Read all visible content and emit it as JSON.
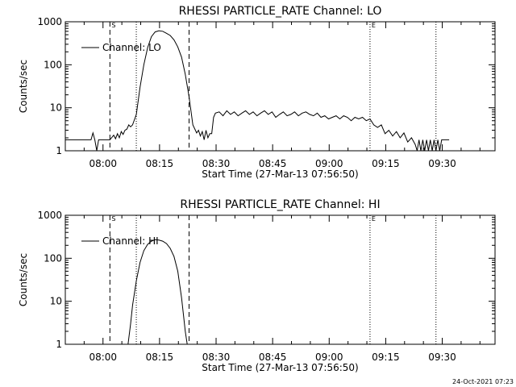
{
  "footer_timestamp": "24-Oct-2021 07:23",
  "chart_data": [
    {
      "type": "line",
      "title": "RHESSI PARTICLE_RATE Channel: LO",
      "xlabel": "Start Time (27-Mar-13 07:56:50)",
      "ylabel": "Counts/sec",
      "yscale": "log",
      "xlim": [
        -6.833,
        107.167
      ],
      "ylim": [
        1,
        1000
      ],
      "xticks": [
        {
          "v": 3.167,
          "label": "08:00"
        },
        {
          "v": 18.167,
          "label": "08:15"
        },
        {
          "v": 33.167,
          "label": "08:30"
        },
        {
          "v": 48.167,
          "label": "08:45"
        },
        {
          "v": 63.167,
          "label": "09:00"
        },
        {
          "v": 78.167,
          "label": "09:15"
        },
        {
          "v": 93.167,
          "label": "09:30"
        }
      ],
      "yticks": [
        {
          "v": 1,
          "label": "1"
        },
        {
          "v": 10,
          "label": "10"
        },
        {
          "v": 100,
          "label": "100"
        },
        {
          "v": 1000,
          "label": "1000"
        }
      ],
      "legend": {
        "label": "Channel: LO",
        "position": "top-left"
      },
      "markers": [
        {
          "label": "S",
          "x": 5.0,
          "style": "dashed"
        },
        {
          "label": "",
          "x": 26.0,
          "style": "dashed"
        },
        {
          "label": "",
          "x": 12.0,
          "style": "dotted"
        },
        {
          "label": "E",
          "x": 74.0,
          "style": "dotted"
        },
        {
          "label": "",
          "x": 91.5,
          "style": "dotted"
        }
      ],
      "series": [
        {
          "values": [
            [
              -6.8,
              1.8
            ],
            [
              0,
              1.8
            ],
            [
              0.5,
              2.6
            ],
            [
              1,
              1.8
            ],
            [
              1.5,
              1
            ],
            [
              2,
              1.8
            ],
            [
              5,
              1.8
            ],
            [
              6,
              2.3
            ],
            [
              6.5,
              1.9
            ],
            [
              7,
              2.5
            ],
            [
              7.5,
              2
            ],
            [
              8,
              2.8
            ],
            [
              8.5,
              2.4
            ],
            [
              9,
              3
            ],
            [
              9.5,
              3.2
            ],
            [
              10,
              4
            ],
            [
              10.5,
              3.6
            ],
            [
              11,
              4
            ],
            [
              12,
              7
            ],
            [
              13,
              30
            ],
            [
              14,
              100
            ],
            [
              15,
              250
            ],
            [
              16,
              450
            ],
            [
              17,
              580
            ],
            [
              18,
              620
            ],
            [
              19,
              600
            ],
            [
              20,
              540
            ],
            [
              21,
              480
            ],
            [
              22,
              380
            ],
            [
              23,
              260
            ],
            [
              24,
              150
            ],
            [
              25,
              60
            ],
            [
              26,
              18
            ],
            [
              27,
              4
            ],
            [
              28,
              2.6
            ],
            [
              28.5,
              3
            ],
            [
              29,
              2.2
            ],
            [
              29.5,
              2.8
            ],
            [
              30,
              1.8
            ],
            [
              30.5,
              3
            ],
            [
              31,
              2
            ],
            [
              31.5,
              2.5
            ],
            [
              32,
              2.5
            ],
            [
              32.5,
              6
            ],
            [
              33,
              7.5
            ],
            [
              34,
              8
            ],
            [
              35,
              6.5
            ],
            [
              36,
              8.5
            ],
            [
              37,
              7
            ],
            [
              38,
              8
            ],
            [
              39,
              6.5
            ],
            [
              40,
              7.5
            ],
            [
              41,
              8.5
            ],
            [
              42,
              7
            ],
            [
              43,
              8
            ],
            [
              44,
              6.5
            ],
            [
              45,
              7.5
            ],
            [
              46,
              8.5
            ],
            [
              47,
              7
            ],
            [
              48,
              8
            ],
            [
              49,
              6
            ],
            [
              50,
              7
            ],
            [
              51,
              8
            ],
            [
              52,
              6.5
            ],
            [
              53,
              7
            ],
            [
              54,
              8
            ],
            [
              55,
              6.5
            ],
            [
              56,
              7.5
            ],
            [
              57,
              8
            ],
            [
              58,
              7
            ],
            [
              59,
              6.5
            ],
            [
              60,
              7.5
            ],
            [
              61,
              6
            ],
            [
              62,
              6.5
            ],
            [
              63,
              5.5
            ],
            [
              64,
              6
            ],
            [
              65,
              6.5
            ],
            [
              66,
              5.5
            ],
            [
              67,
              6.5
            ],
            [
              68,
              6
            ],
            [
              69,
              5
            ],
            [
              70,
              6
            ],
            [
              71,
              5.5
            ],
            [
              72,
              6
            ],
            [
              73,
              5
            ],
            [
              74,
              5.5
            ],
            [
              75,
              4
            ],
            [
              76,
              3.5
            ],
            [
              77,
              4
            ],
            [
              78,
              2.5
            ],
            [
              79,
              3
            ],
            [
              80,
              2.2
            ],
            [
              81,
              2.8
            ],
            [
              82,
              2
            ],
            [
              83,
              2.6
            ],
            [
              84,
              1.6
            ],
            [
              85,
              2
            ],
            [
              86,
              1.4
            ],
            [
              86.5,
              1
            ],
            [
              87,
              1.8
            ],
            [
              87.5,
              1
            ],
            [
              88,
              1.8
            ],
            [
              88.5,
              1
            ],
            [
              89,
              1.8
            ],
            [
              89.5,
              1
            ],
            [
              90,
              1.8
            ],
            [
              90.5,
              1
            ],
            [
              91,
              1.8
            ],
            [
              91.5,
              1
            ],
            [
              92,
              1.8
            ],
            [
              92.5,
              1
            ],
            [
              93,
              1.8
            ],
            [
              95,
              1.8
            ]
          ]
        }
      ]
    },
    {
      "type": "line",
      "title": "RHESSI PARTICLE_RATE Channel: HI",
      "xlabel": "Start Time (27-Mar-13 07:56:50)",
      "ylabel": "Counts/sec",
      "yscale": "log",
      "xlim": [
        -6.833,
        107.167
      ],
      "ylim": [
        1,
        1000
      ],
      "xticks": [
        {
          "v": 3.167,
          "label": "08:00"
        },
        {
          "v": 18.167,
          "label": "08:15"
        },
        {
          "v": 33.167,
          "label": "08:30"
        },
        {
          "v": 48.167,
          "label": "08:45"
        },
        {
          "v": 63.167,
          "label": "09:00"
        },
        {
          "v": 78.167,
          "label": "09:15"
        },
        {
          "v": 93.167,
          "label": "09:30"
        }
      ],
      "yticks": [
        {
          "v": 1,
          "label": "1"
        },
        {
          "v": 10,
          "label": "10"
        },
        {
          "v": 100,
          "label": "100"
        },
        {
          "v": 1000,
          "label": "1000"
        }
      ],
      "legend": {
        "label": "Channel: HI",
        "position": "top-left"
      },
      "markers": [
        {
          "label": "S",
          "x": 5.0,
          "style": "dashed"
        },
        {
          "label": "",
          "x": 26.0,
          "style": "dashed"
        },
        {
          "label": "",
          "x": 12.0,
          "style": "dotted"
        },
        {
          "label": "E",
          "x": 74.0,
          "style": "dotted"
        },
        {
          "label": "",
          "x": 91.5,
          "style": "dotted"
        }
      ],
      "series": [
        {
          "values": [
            [
              9.8,
              1
            ],
            [
              10.5,
              3
            ],
            [
              11,
              8
            ],
            [
              12,
              30
            ],
            [
              13,
              80
            ],
            [
              14,
              150
            ],
            [
              15,
              210
            ],
            [
              16,
              250
            ],
            [
              17,
              270
            ],
            [
              18,
              265
            ],
            [
              19,
              250
            ],
            [
              20,
              220
            ],
            [
              21,
              170
            ],
            [
              22,
              110
            ],
            [
              23,
              50
            ],
            [
              24,
              12
            ],
            [
              25,
              2
            ],
            [
              25.5,
              1
            ]
          ]
        }
      ]
    }
  ]
}
